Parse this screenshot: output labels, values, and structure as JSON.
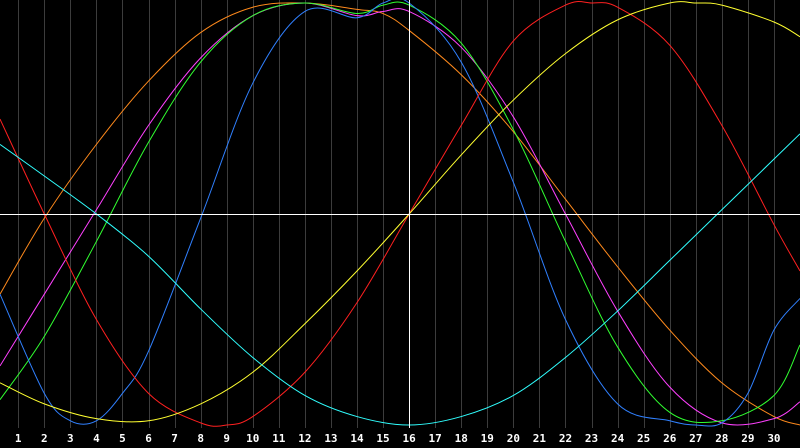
{
  "chart_data": {
    "type": "line",
    "x_ticks": [
      "1",
      "2",
      "3",
      "4",
      "5",
      "6",
      "7",
      "8",
      "9",
      "10",
      "11",
      "12",
      "13",
      "14",
      "15",
      "16",
      "17",
      "18",
      "19",
      "20",
      "21",
      "22",
      "23",
      "24",
      "25",
      "26",
      "27",
      "28",
      "29",
      "30"
    ],
    "xlim": [
      0.3,
      31.0
    ],
    "ylim": [
      -1,
      1
    ],
    "highlight_x": 16,
    "grid": true,
    "background": "#000000",
    "grid_color": "#3c3c3c",
    "axis_color": "#ffffff",
    "series": [
      {
        "color": "#ff8a1c",
        "x": [
          0.3,
          2,
          4,
          6,
          8,
          10,
          12,
          14,
          15,
          16,
          18,
          20,
          22,
          24,
          26,
          28,
          30,
          31
        ],
        "y": [
          -0.38,
          -0.02,
          0.33,
          0.63,
          0.86,
          0.98,
          1.0,
          0.97,
          0.95,
          0.87,
          0.66,
          0.39,
          0.07,
          -0.25,
          -0.55,
          -0.8,
          -0.96,
          -1.0
        ]
      },
      {
        "color": "#ff40ff",
        "x": [
          0.3,
          2,
          4,
          6,
          8,
          10,
          12,
          14,
          15,
          16,
          18,
          20,
          22,
          24,
          26,
          28,
          30,
          31
        ],
        "y": [
          -0.72,
          -0.38,
          0.02,
          0.42,
          0.74,
          0.94,
          1.0,
          0.94,
          0.96,
          0.96,
          0.79,
          0.46,
          0.0,
          -0.46,
          -0.82,
          -0.99,
          -0.97,
          -0.89
        ]
      },
      {
        "color": "#30ff30",
        "x": [
          0.3,
          2,
          4,
          6,
          8,
          10,
          12,
          14,
          15,
          16,
          18,
          20,
          22,
          24,
          26,
          28,
          30,
          31
        ],
        "y": [
          -0.88,
          -0.58,
          -0.13,
          0.34,
          0.72,
          0.94,
          1.0,
          0.95,
          0.99,
          0.99,
          0.81,
          0.4,
          -0.13,
          -0.63,
          -0.94,
          -0.98,
          -0.86,
          -0.62
        ]
      },
      {
        "color": "#3080ff",
        "x": [
          0.3,
          2,
          3,
          4,
          5,
          6,
          8,
          10,
          12,
          14,
          15,
          16,
          18,
          20,
          22,
          24,
          26,
          27,
          28,
          29,
          30,
          31
        ],
        "y": [
          -0.38,
          -0.85,
          -0.98,
          -0.98,
          -0.85,
          -0.65,
          -0.02,
          0.62,
          0.96,
          0.93,
          1.0,
          1.0,
          0.72,
          0.15,
          -0.5,
          -0.9,
          -0.98,
          -1.0,
          -0.99,
          -0.85,
          -0.55,
          -0.4
        ]
      },
      {
        "color": "#ff2020",
        "x": [
          0.3,
          2,
          4,
          6,
          8,
          9,
          10,
          12,
          14,
          16,
          18,
          20,
          22,
          23,
          24,
          26,
          28,
          30,
          31
        ],
        "y": [
          0.45,
          0.0,
          -0.5,
          -0.85,
          -0.99,
          -1.0,
          -0.96,
          -0.75,
          -0.42,
          0.0,
          0.42,
          0.82,
          0.99,
          1.0,
          0.98,
          0.8,
          0.42,
          -0.05,
          -0.27
        ]
      },
      {
        "color": "#ffff30",
        "x": [
          0.3,
          2,
          4,
          6,
          8,
          10,
          12,
          14,
          16,
          18,
          20,
          22,
          24,
          26,
          27,
          28,
          30,
          31
        ],
        "y": [
          -0.8,
          -0.9,
          -0.97,
          -0.98,
          -0.9,
          -0.75,
          -0.52,
          -0.27,
          0.0,
          0.28,
          0.54,
          0.76,
          0.92,
          1.0,
          1.0,
          0.99,
          0.91,
          0.84
        ]
      },
      {
        "color": "#30ffff",
        "x": [
          0.3,
          2,
          4,
          6,
          8,
          10,
          12,
          14,
          16,
          18,
          20,
          22,
          24,
          26,
          28,
          30,
          31
        ],
        "y": [
          0.33,
          0.18,
          0.0,
          -0.2,
          -0.45,
          -0.68,
          -0.86,
          -0.96,
          -1.0,
          -0.96,
          -0.86,
          -0.68,
          -0.46,
          -0.22,
          0.02,
          0.26,
          0.38
        ]
      }
    ]
  }
}
